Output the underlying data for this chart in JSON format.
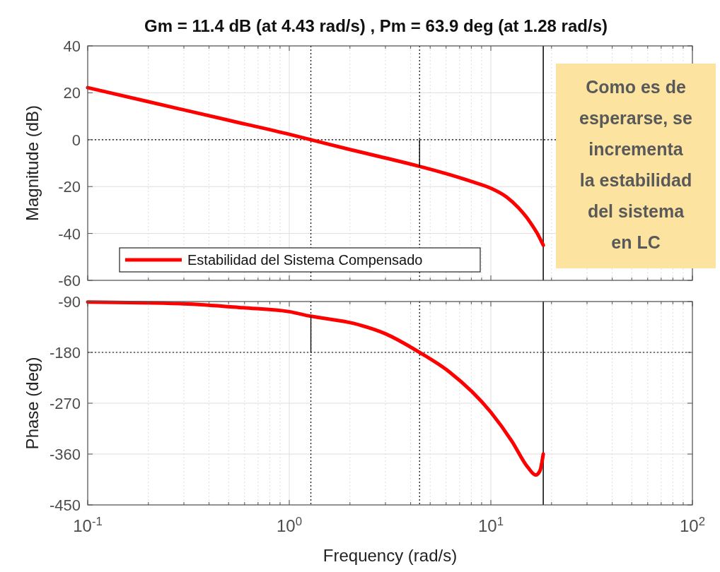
{
  "chart_data": [
    {
      "type": "line",
      "title": "Gm = 11.4 dB (at 4.43 rad/s) ,  Pm = 63.9 deg (at 1.28 rad/s)",
      "ylabel": "Magnitude (dB)",
      "log": "x",
      "grid": true,
      "legend": "bottom left",
      "tick_labels": "y",
      "xlim": [
        0.1,
        100
      ],
      "xticks": [
        {
          "value": 0.1,
          "label": null
        },
        {
          "value": 1,
          "label": null
        },
        {
          "value": 10,
          "label": null
        },
        {
          "value": 100,
          "label": null
        }
      ],
      "ylim": [
        -60,
        40
      ],
      "yticks": [
        -60,
        -40,
        -20,
        0,
        20,
        40
      ],
      "series": [
        {
          "name": "Estabilidad del Sistema Compensado",
          "color": "#ff0000",
          "x": [
            0.1,
            0.2,
            0.5,
            1,
            1.28,
            2,
            3,
            4.43,
            6,
            8,
            10,
            12,
            13.7,
            15,
            15.8,
            17,
            18.2
          ],
          "values": [
            22.2,
            16.2,
            8.3,
            2.3,
            0,
            -4.2,
            -7.8,
            -11.4,
            -14.5,
            -17.8,
            -20.7,
            -24.5,
            -29,
            -33,
            -35.7,
            -40,
            -45
          ]
        },
        {
          "color": "#000000",
          "x": [
            4.43,
            4.43
          ],
          "values": [
            0,
            -11.4
          ]
        }
      ],
      "ref_lines": [
        {
          "axis": "y",
          "value": 0,
          "color": "#000000",
          "line_style": "dotted"
        },
        {
          "axis": "x",
          "value": 1.28,
          "color": "#000000",
          "line_style": "dotted"
        },
        {
          "axis": "x",
          "value": 4.43,
          "color": "#000000",
          "line_style": "dotted"
        },
        {
          "axis": "x",
          "value": 18.2,
          "color": "#000000",
          "line_style": "solid"
        }
      ],
      "annotations": [
        "Como es de\nesperarse, se\nincrementa\nla estabilidad\ndel sistema\nen LC"
      ]
    },
    {
      "type": "line",
      "ylabel": "Phase (deg)",
      "xlabel": "Frequency  (rad/s)",
      "log": "x",
      "grid": true,
      "xlim": [
        0.1,
        100
      ],
      "xticks": [
        {
          "value": 0.1,
          "label": "10$^{-1}$"
        },
        {
          "value": 1,
          "label": "10$^{0}$"
        },
        {
          "value": 10,
          "label": "10$^{1}$"
        },
        {
          "value": 100,
          "label": "10$^{2}$"
        }
      ],
      "ylim": [
        -450,
        -90
      ],
      "yticks": [
        -450,
        -360,
        -270,
        -180,
        -90
      ],
      "series": [
        {
          "color": "#ff0000",
          "x": [
            0.1,
            0.3,
            0.59,
            1,
            1.28,
            2.1,
            3,
            4.43,
            6.2,
            10,
            12.7,
            15.3,
            16.7,
            17.5,
            18.2
          ],
          "values": [
            -91,
            -94,
            -101,
            -108,
            -116,
            -129,
            -147,
            -180,
            -214,
            -286,
            -337,
            -384,
            -397,
            -390,
            -360
          ]
        },
        {
          "color": "#000000",
          "x": [
            1.28,
            1.28
          ],
          "values": [
            -180,
            -116
          ]
        }
      ],
      "ref_lines": [
        {
          "axis": "y",
          "value": -180,
          "color": "#000000",
          "line_style": "dotted"
        },
        {
          "axis": "x",
          "value": 1.28,
          "color": "#000000",
          "line_style": "dotted"
        },
        {
          "axis": "x",
          "value": 4.43,
          "color": "#000000",
          "line_style": "dotted"
        },
        {
          "axis": "x",
          "value": 18.2,
          "color": "#000000",
          "line_style": "solid"
        }
      ]
    }
  ]
}
